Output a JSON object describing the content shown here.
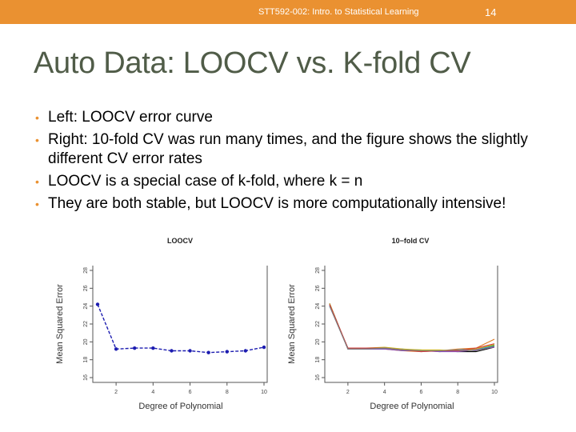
{
  "header": {
    "course": "STT592-002: Intro. to Statistical Learning",
    "page_number": "14"
  },
  "title": "Auto Data: LOOCV vs. K-fold CV",
  "bullets": [
    "Left: LOOCV  error curve",
    "Right: 10-fold CV was run many times, and the figure shows the slightly different CV error rates",
    "LOOCV is a special case of k-fold, where k = n",
    "They are both stable, but LOOCV is more computationally intensive!"
  ],
  "colors": {
    "accent": "#ea9131",
    "title": "#505c48",
    "loocv_line": "#1c1cb0"
  },
  "chart_data": [
    {
      "type": "line",
      "title": "LOOCV",
      "xlabel": "Degree of Polynomial",
      "ylabel": "Mean Squared Error",
      "xlim": [
        1,
        10
      ],
      "ylim": [
        16,
        28
      ],
      "xticks": [
        2,
        4,
        6,
        8,
        10
      ],
      "yticks": [
        16,
        18,
        20,
        22,
        24,
        26,
        28
      ],
      "series": [
        {
          "color": "#1c1cb0",
          "x": [
            1,
            2,
            3,
            4,
            5,
            6,
            7,
            8,
            9,
            10
          ],
          "values": [
            24.2,
            19.2,
            19.3,
            19.3,
            19.0,
            19.0,
            18.8,
            18.9,
            19.0,
            19.4
          ]
        }
      ]
    },
    {
      "type": "line",
      "title": "10−fold CV",
      "xlabel": "Degree of Polynomial",
      "ylabel": "Mean Squared Error",
      "xlim": [
        1,
        10
      ],
      "ylim": [
        16,
        28
      ],
      "xticks": [
        2,
        4,
        6,
        8,
        10
      ],
      "yticks": [
        16,
        18,
        20,
        22,
        24,
        26,
        28
      ],
      "series": [
        {
          "color": "#000000",
          "x": [
            1,
            2,
            3,
            4,
            5,
            6,
            7,
            8,
            9,
            10
          ],
          "values": [
            24.3,
            19.2,
            19.2,
            19.3,
            19.1,
            19.0,
            19.0,
            18.9,
            18.9,
            19.4
          ]
        },
        {
          "color": "#e07a22",
          "x": [
            1,
            2,
            3,
            4,
            5,
            6,
            7,
            8,
            9,
            10
          ],
          "values": [
            24.1,
            19.3,
            19.3,
            19.2,
            19.0,
            18.9,
            19.0,
            19.2,
            19.3,
            20.3
          ]
        },
        {
          "color": "#2aa84a",
          "x": [
            1,
            2,
            3,
            4,
            5,
            6,
            7,
            8,
            9,
            10
          ],
          "values": [
            24.2,
            19.2,
            19.2,
            19.3,
            19.1,
            19.1,
            18.9,
            19.0,
            19.1,
            19.6
          ]
        },
        {
          "color": "#1f8fcf",
          "x": [
            1,
            2,
            3,
            4,
            5,
            6,
            7,
            8,
            9,
            10
          ],
          "values": [
            24.0,
            19.3,
            19.2,
            19.2,
            19.2,
            19.0,
            19.0,
            19.1,
            19.2,
            19.5
          ]
        },
        {
          "color": "#c9b020",
          "x": [
            1,
            2,
            3,
            4,
            5,
            6,
            7,
            8,
            9,
            10
          ],
          "values": [
            24.3,
            19.2,
            19.3,
            19.4,
            19.2,
            19.1,
            19.1,
            19.0,
            19.2,
            19.7
          ]
        },
        {
          "color": "#8a4fb8",
          "x": [
            1,
            2,
            3,
            4,
            5,
            6,
            7,
            8,
            9,
            10
          ],
          "values": [
            24.1,
            19.2,
            19.2,
            19.2,
            19.0,
            19.0,
            18.9,
            18.9,
            19.1,
            19.4
          ]
        },
        {
          "color": "#d23c3c",
          "x": [
            1,
            2,
            3,
            4,
            5,
            6,
            7,
            8,
            9,
            10
          ],
          "values": [
            24.2,
            19.3,
            19.3,
            19.3,
            19.1,
            18.9,
            19.0,
            19.0,
            19.3,
            19.8
          ]
        },
        {
          "color": "#7d7d7d",
          "x": [
            1,
            2,
            3,
            4,
            5,
            6,
            7,
            8,
            9,
            10
          ],
          "values": [
            24.0,
            19.2,
            19.2,
            19.3,
            19.1,
            19.0,
            19.0,
            19.1,
            19.0,
            19.5
          ]
        }
      ]
    }
  ]
}
